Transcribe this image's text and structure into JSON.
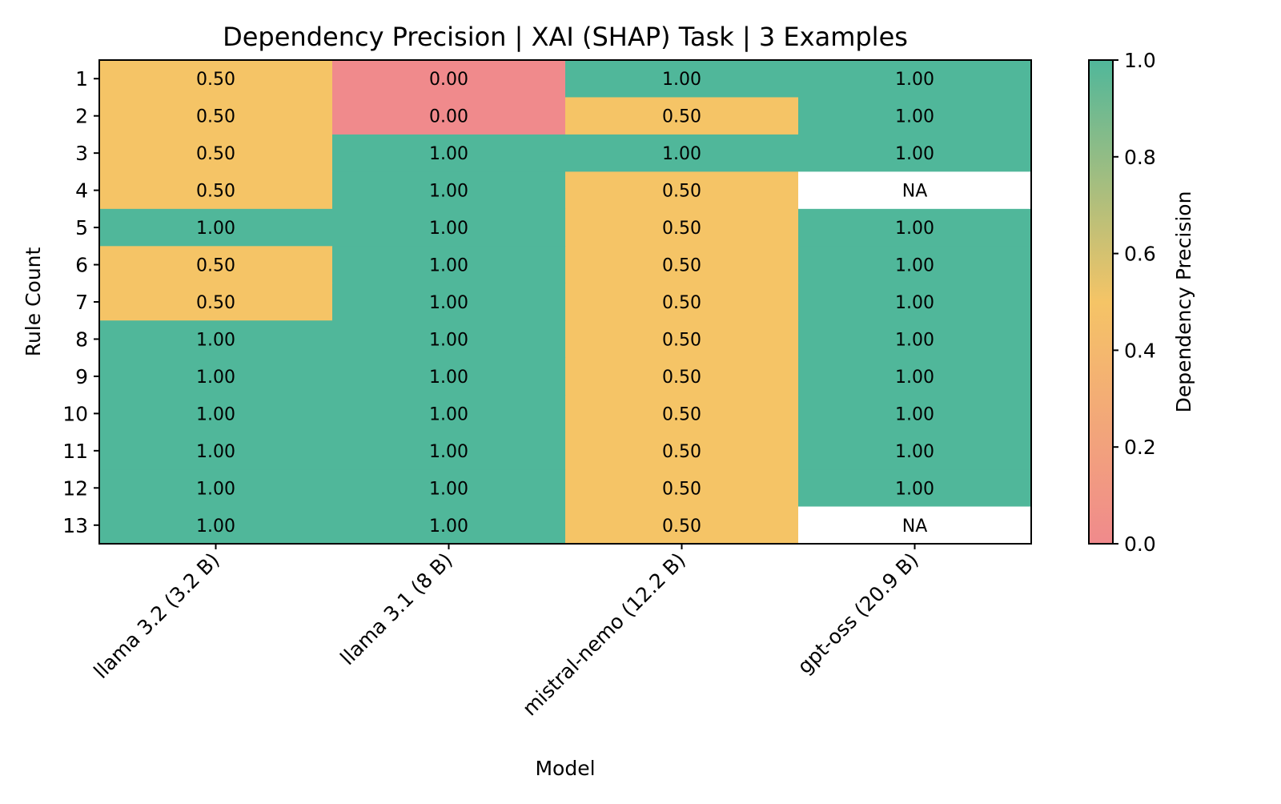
{
  "chart_data": {
    "type": "heatmap",
    "title": "Dependency Precision | XAI (SHAP) Task | 3 Examples",
    "xlabel": "Model",
    "ylabel": "Rule Count",
    "x_categories": [
      "llama 3.2 (3.2 B)",
      "llama 3.1 (8 B)",
      "mistral-nemo (12.2 B)",
      "gpt-oss (20.9 B)"
    ],
    "y_categories": [
      "1",
      "2",
      "3",
      "4",
      "5",
      "6",
      "7",
      "8",
      "9",
      "10",
      "11",
      "12",
      "13"
    ],
    "values": [
      [
        0.5,
        0.0,
        1.0,
        1.0
      ],
      [
        0.5,
        0.0,
        0.5,
        1.0
      ],
      [
        0.5,
        1.0,
        1.0,
        1.0
      ],
      [
        0.5,
        1.0,
        0.5,
        null
      ],
      [
        1.0,
        1.0,
        0.5,
        1.0
      ],
      [
        0.5,
        1.0,
        0.5,
        1.0
      ],
      [
        0.5,
        1.0,
        0.5,
        1.0
      ],
      [
        1.0,
        1.0,
        0.5,
        1.0
      ],
      [
        1.0,
        1.0,
        0.5,
        1.0
      ],
      [
        1.0,
        1.0,
        0.5,
        1.0
      ],
      [
        1.0,
        1.0,
        0.5,
        1.0
      ],
      [
        1.0,
        1.0,
        0.5,
        1.0
      ],
      [
        1.0,
        1.0,
        0.5,
        null
      ]
    ],
    "cell_labels": [
      [
        "0.50",
        "0.00",
        "1.00",
        "1.00"
      ],
      [
        "0.50",
        "0.00",
        "0.50",
        "1.00"
      ],
      [
        "0.50",
        "1.00",
        "1.00",
        "1.00"
      ],
      [
        "0.50",
        "1.00",
        "0.50",
        "NA"
      ],
      [
        "1.00",
        "1.00",
        "0.50",
        "1.00"
      ],
      [
        "0.50",
        "1.00",
        "0.50",
        "1.00"
      ],
      [
        "0.50",
        "1.00",
        "0.50",
        "1.00"
      ],
      [
        "1.00",
        "1.00",
        "0.50",
        "1.00"
      ],
      [
        "1.00",
        "1.00",
        "0.50",
        "1.00"
      ],
      [
        "1.00",
        "1.00",
        "0.50",
        "1.00"
      ],
      [
        "1.00",
        "1.00",
        "0.50",
        "1.00"
      ],
      [
        "1.00",
        "1.00",
        "0.50",
        "1.00"
      ],
      [
        "1.00",
        "1.00",
        "0.50",
        "NA"
      ]
    ],
    "missing_label": "NA",
    "colorbar": {
      "label": "Dependency Precision",
      "range": [
        0.0,
        1.0
      ],
      "ticks": [
        "0.0",
        "0.2",
        "0.4",
        "0.6",
        "0.8",
        "1.0"
      ],
      "colors": {
        "low": "#f08a8c",
        "mid": "#f5c466",
        "high": "#50b79a"
      }
    },
    "grid": false,
    "legend": "colorbar-right"
  }
}
